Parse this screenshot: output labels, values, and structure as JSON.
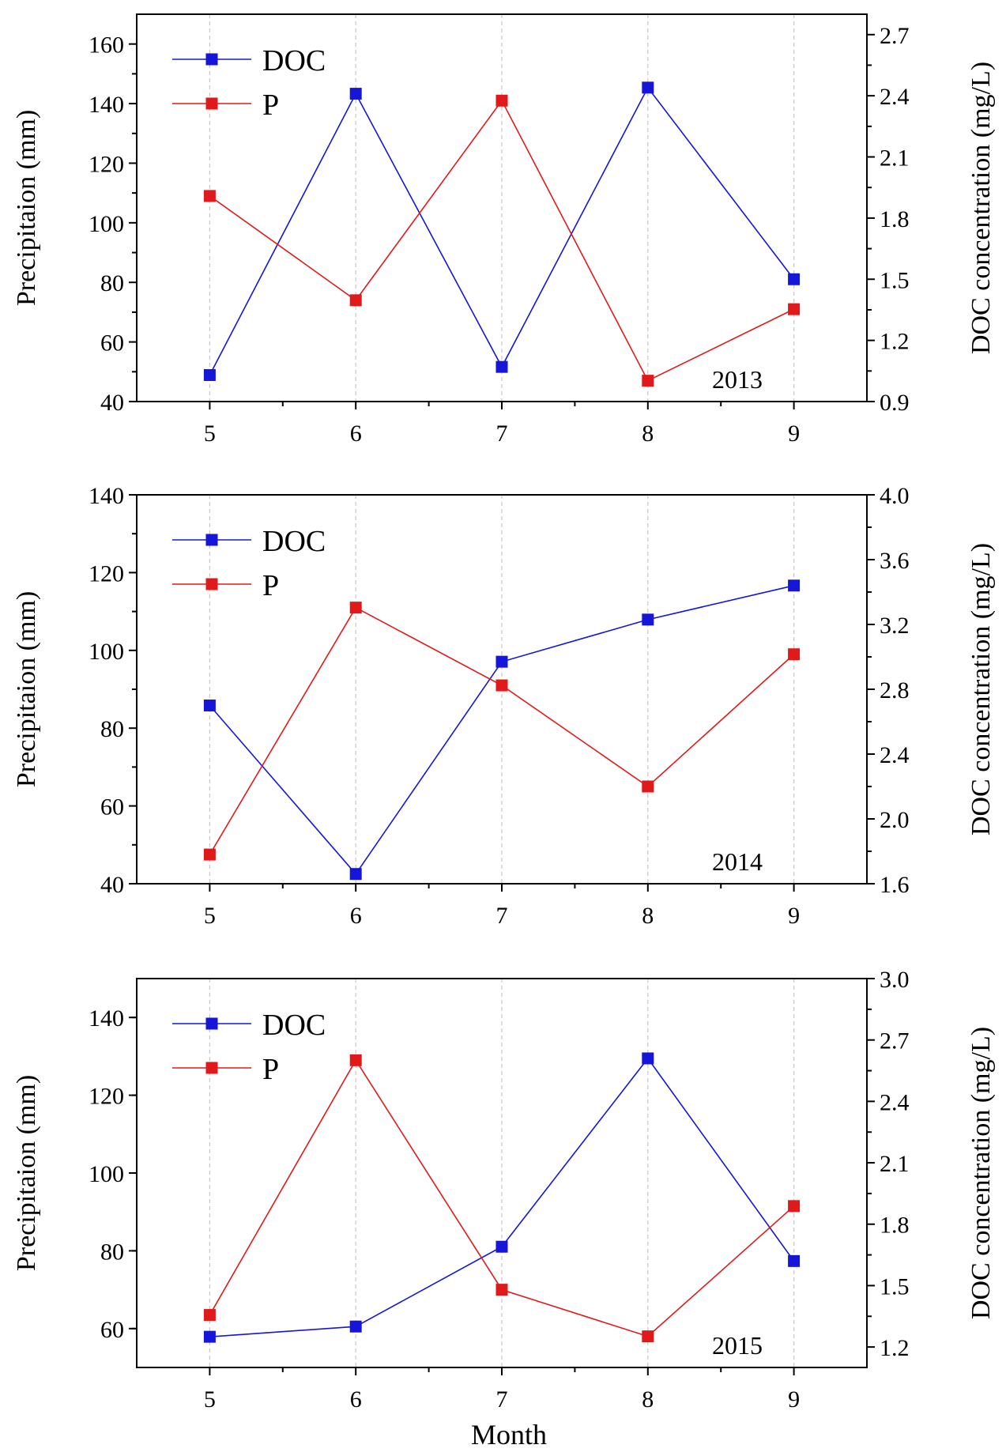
{
  "colors": {
    "doc": "#1616d8",
    "p": "#e01a1a",
    "grid": "#c8c8c8",
    "axis": "#000000"
  },
  "xlabel": "Month",
  "chart_data": [
    {
      "type": "line",
      "year": "2013",
      "categories": [
        "5",
        "6",
        "7",
        "8",
        "9"
      ],
      "xlim": [
        4.5,
        9.5
      ],
      "ylabel_left": "Precipitaion (mm)",
      "ylabel_right": "DOC concentration (mg/L)",
      "ylim_left": [
        40,
        170
      ],
      "yticks_left": [
        "40",
        "60",
        "80",
        "100",
        "120",
        "140",
        "160"
      ],
      "ylim_right": [
        0.9,
        2.8
      ],
      "yticks_right": [
        "0.9",
        "1.2",
        "1.5",
        "1.8",
        "2.1",
        "2.4",
        "2.7"
      ],
      "series": [
        {
          "name": "DOC",
          "axis": "right",
          "values": [
            1.03,
            2.41,
            1.07,
            2.44,
            1.5
          ]
        },
        {
          "name": "P",
          "axis": "left",
          "values": [
            109,
            74,
            141,
            47,
            71
          ]
        }
      ]
    },
    {
      "type": "line",
      "year": "2014",
      "categories": [
        "5",
        "6",
        "7",
        "8",
        "9"
      ],
      "xlim": [
        4.5,
        9.5
      ],
      "ylabel_left": "Precipitaion (mm)",
      "ylabel_right": "DOC concentration (mg/L)",
      "ylim_left": [
        40,
        140
      ],
      "yticks_left": [
        "40",
        "60",
        "80",
        "100",
        "120",
        "140"
      ],
      "ylim_right": [
        1.6,
        4.0
      ],
      "yticks_right": [
        "1.6",
        "2.0",
        "2.4",
        "2.8",
        "3.2",
        "3.6",
        "4.0"
      ],
      "series": [
        {
          "name": "DOC",
          "axis": "right",
          "values": [
            2.7,
            1.66,
            2.97,
            3.23,
            3.44
          ]
        },
        {
          "name": "P",
          "axis": "left",
          "values": [
            47.5,
            111,
            91,
            65,
            99
          ]
        }
      ]
    },
    {
      "type": "line",
      "year": "2015",
      "categories": [
        "5",
        "6",
        "7",
        "8",
        "9"
      ],
      "xlim": [
        4.5,
        9.5
      ],
      "ylabel_left": "Precipitaion (mm)",
      "ylabel_right": "DOC concentration (mg/L)",
      "ylim_left": [
        50,
        150
      ],
      "yticks_left": [
        "60",
        "80",
        "100",
        "120",
        "140"
      ],
      "ylim_right": [
        1.1,
        3.0
      ],
      "yticks_right": [
        "1.2",
        "1.5",
        "1.8",
        "2.1",
        "2.4",
        "2.7",
        "3.0"
      ],
      "series": [
        {
          "name": "DOC",
          "axis": "right",
          "values": [
            1.25,
            1.3,
            1.69,
            2.61,
            1.62
          ]
        },
        {
          "name": "P",
          "axis": "left",
          "values": [
            63.5,
            129,
            70,
            58,
            91.5
          ]
        }
      ]
    }
  ]
}
